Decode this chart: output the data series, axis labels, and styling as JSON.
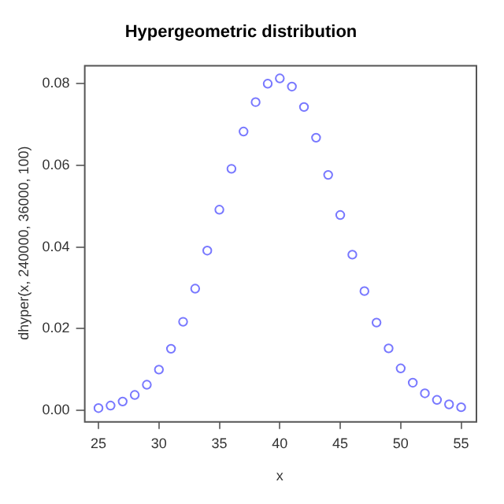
{
  "chart_data": {
    "type": "scatter",
    "title": "Hypergeometric distribution",
    "xlabel": "x",
    "ylabel": "dhyper(x, 240000, 36000, 100)",
    "x": [
      25,
      26,
      27,
      28,
      29,
      30,
      31,
      32,
      33,
      34,
      35,
      36,
      37,
      38,
      39,
      40,
      41,
      42,
      43,
      44,
      45,
      46,
      47,
      48,
      49,
      50,
      51,
      52,
      53,
      54,
      55
    ],
    "series": [
      {
        "color": "#7878ff",
        "values": [
          0.0006,
          0.0012,
          0.0022,
          0.0038,
          0.0063,
          0.01,
          0.0151,
          0.0217,
          0.0298,
          0.0391,
          0.0491,
          0.0591,
          0.0682,
          0.0754,
          0.0799,
          0.0812,
          0.0792,
          0.0742,
          0.0667,
          0.0576,
          0.0478,
          0.0381,
          0.0292,
          0.0215,
          0.0152,
          0.0103,
          0.0068,
          0.0042,
          0.0026,
          0.0015,
          0.0008
        ]
      }
    ],
    "xlim": [
      23.8,
      56.2
    ],
    "ylim": [
      -0.0026,
      0.0845
    ],
    "xticks": [
      25,
      30,
      35,
      40,
      45,
      50,
      55
    ],
    "yticks": [
      {
        "value": 0,
        "label": "0.00"
      },
      {
        "value": 0.02,
        "label": "0.02"
      },
      {
        "value": 0.04,
        "label": "0.04"
      },
      {
        "value": 0.06,
        "label": "0.06"
      },
      {
        "value": 0.08,
        "label": "0.08"
      }
    ],
    "grid": false,
    "legend": false,
    "marker": "circle"
  }
}
